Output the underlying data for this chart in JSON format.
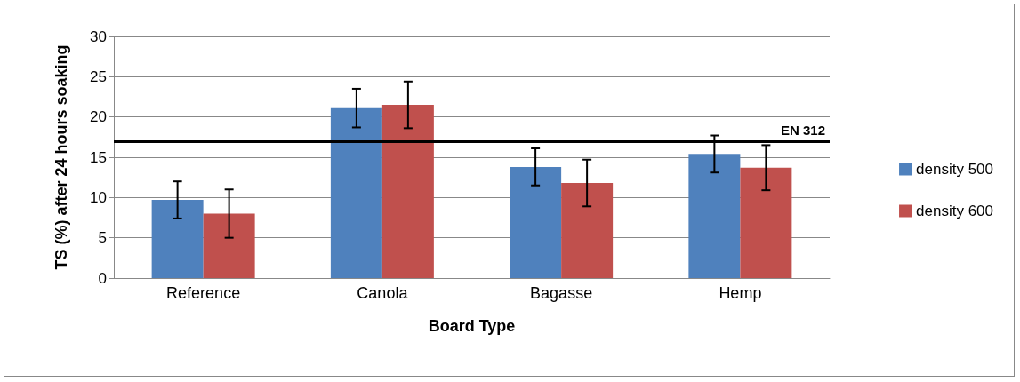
{
  "chart_data": {
    "type": "bar",
    "xlabel": "Board Type",
    "ylabel": "TS (%) after 24 hours soaking",
    "categories": [
      "Reference",
      "Canola",
      "Bagasse",
      "Hemp"
    ],
    "series": [
      {
        "name": "density 500",
        "color": "#4f81bd",
        "values": [
          9.7,
          21.1,
          13.8,
          15.4
        ],
        "errors": [
          2.3,
          2.4,
          2.3,
          2.3
        ]
      },
      {
        "name": "density 600",
        "color": "#c0504d",
        "values": [
          8.0,
          21.5,
          11.8,
          13.7
        ],
        "errors": [
          3.0,
          2.9,
          2.9,
          2.8
        ]
      }
    ],
    "ylim": [
      0,
      30
    ],
    "yticks": [
      0,
      5,
      10,
      15,
      20,
      25,
      30
    ],
    "grid": "y",
    "legend": "right",
    "ref_lines": [
      {
        "axis": "y",
        "value": 17,
        "label": "EN 312",
        "color": "#000000"
      }
    ]
  }
}
